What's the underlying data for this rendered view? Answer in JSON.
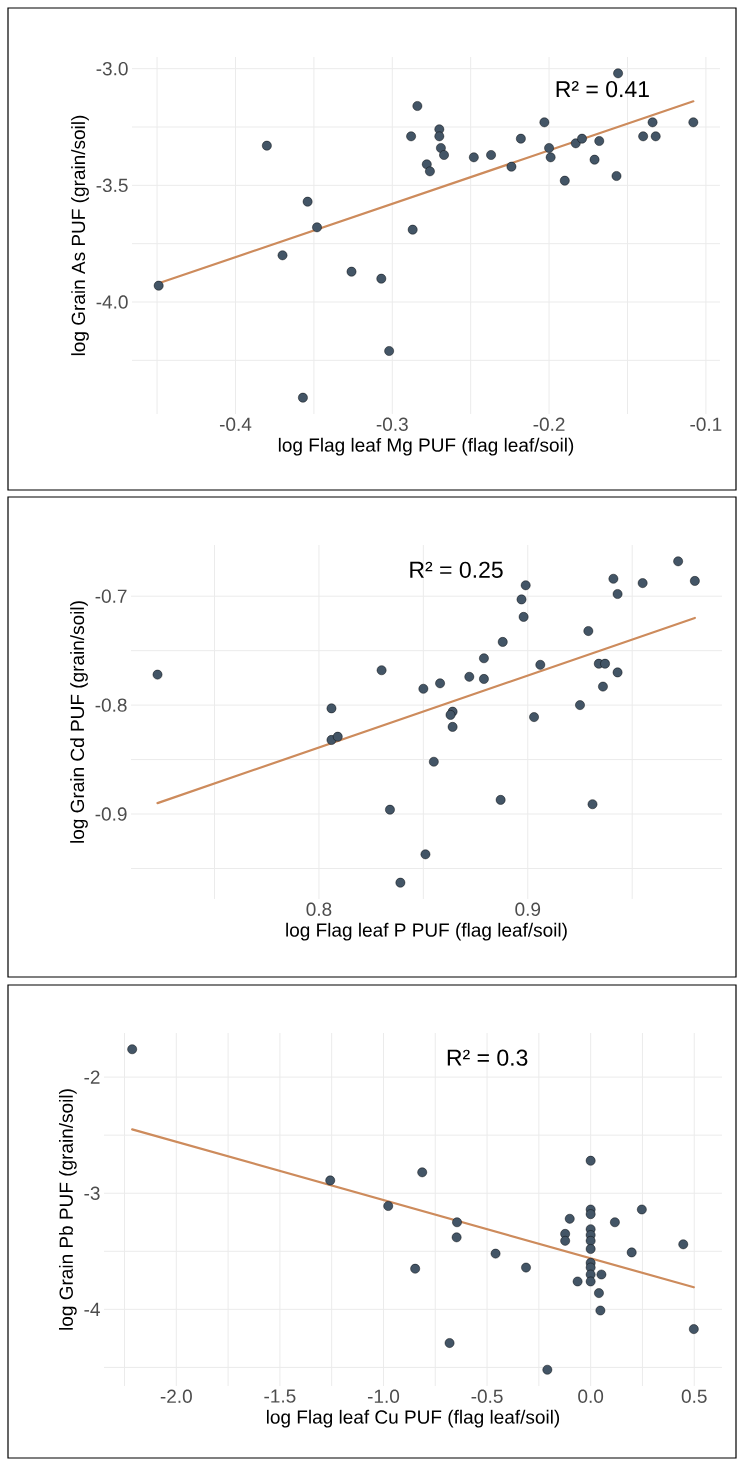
{
  "chart_data": [
    {
      "type": "scatter",
      "xlabel": "log Flag leaf Mg PUF (flag leaf/soil)",
      "ylabel": "log Grain As PUF (grain/soil)",
      "annotations": [
        "R² = 0.41"
      ],
      "xlim": [
        -0.466,
        -0.091
      ],
      "ylim": [
        -4.48,
        -2.95
      ],
      "xticks": [
        {
          "value": -0.45,
          "label": null
        },
        -0.4,
        {
          "value": -0.35,
          "label": null
        },
        -0.3,
        {
          "value": -0.25,
          "label": null
        },
        -0.2,
        {
          "value": -0.15,
          "label": null
        },
        -0.1
      ],
      "yticks": [
        {
          "value": -3.0,
          "label": "-3.0"
        },
        {
          "value": -3.25,
          "label": null
        },
        {
          "value": -3.5,
          "label": "-3.5"
        },
        {
          "value": -3.75,
          "label": null
        },
        {
          "value": -4.0,
          "label": "-4.0"
        },
        {
          "value": -4.25,
          "label": null
        }
      ],
      "grid": true,
      "series": [
        {
          "marker": "circle",
          "color": "#435566",
          "x": [
            -0.449,
            -0.38,
            -0.354,
            -0.348,
            -0.37,
            -0.357,
            -0.326,
            -0.307,
            -0.302,
            -0.284,
            -0.288,
            -0.287,
            -0.278,
            -0.276,
            -0.27,
            -0.27,
            -0.269,
            -0.267,
            -0.248,
            -0.237,
            -0.224,
            -0.218,
            -0.203,
            -0.2,
            -0.199,
            -0.19,
            -0.183,
            -0.179,
            -0.171,
            -0.168,
            -0.157,
            -0.156,
            -0.14,
            -0.134,
            -0.132,
            -0.108
          ],
          "values": [
            -3.93,
            -3.33,
            -3.57,
            -3.68,
            -3.8,
            -4.41,
            -3.87,
            -3.9,
            -4.21,
            -3.16,
            -3.29,
            -3.69,
            -3.41,
            -3.44,
            -3.26,
            -3.29,
            -3.34,
            -3.37,
            -3.38,
            -3.37,
            -3.42,
            -3.3,
            -3.23,
            -3.34,
            -3.38,
            -3.48,
            -3.32,
            -3.3,
            -3.39,
            -3.31,
            -3.46,
            -3.02,
            -3.29,
            -3.23,
            -3.29,
            -3.23
          ]
        },
        {
          "type": "line",
          "marker": "none",
          "color": "#cd8b5c",
          "x": [
            -0.449,
            -0.108
          ],
          "values": [
            -3.92,
            -3.14
          ]
        }
      ]
    },
    {
      "type": "scatter",
      "xlabel": "log Flag leaf P PUF (flag leaf/soil)",
      "ylabel": "log Grain Cd PUF (grain/soil)",
      "annotations": [
        "R² = 0.25"
      ],
      "xlim": [
        0.71,
        0.993
      ],
      "ylim": [
        -0.978,
        -0.653
      ],
      "xticks": [
        {
          "value": 0.75,
          "label": null
        },
        0.8,
        {
          "value": 0.85,
          "label": null
        },
        0.9,
        {
          "value": 0.95,
          "label": null
        }
      ],
      "yticks": [
        -0.7,
        {
          "value": -0.75,
          "label": null
        },
        -0.8,
        {
          "value": -0.85,
          "label": null
        },
        -0.9,
        {
          "value": -0.95,
          "label": null
        }
      ],
      "grid": true,
      "series": [
        {
          "marker": "circle",
          "color": "#435566",
          "x": [
            0.7227,
            0.806,
            0.806,
            0.809,
            0.83,
            0.834,
            0.839,
            0.85,
            0.858,
            0.851,
            0.855,
            0.864,
            0.863,
            0.864,
            0.872,
            0.879,
            0.879,
            0.887,
            0.888,
            0.897,
            0.898,
            0.899,
            0.903,
            0.906,
            0.925,
            0.929,
            0.931,
            0.934,
            0.937,
            0.936,
            0.941,
            0.943,
            0.943,
            0.955,
            0.972,
            0.98
          ],
          "values": [
            -0.772,
            -0.803,
            -0.832,
            -0.829,
            -0.768,
            -0.896,
            -0.963,
            -0.785,
            -0.78,
            -0.937,
            -0.852,
            -0.806,
            -0.809,
            -0.82,
            -0.774,
            -0.776,
            -0.757,
            -0.887,
            -0.742,
            -0.703,
            -0.719,
            -0.69,
            -0.811,
            -0.763,
            -0.8,
            -0.732,
            -0.891,
            -0.762,
            -0.762,
            -0.783,
            -0.684,
            -0.698,
            -0.77,
            -0.688,
            -0.668,
            -0.686
          ]
        },
        {
          "type": "line",
          "marker": "none",
          "color": "#cd8b5c",
          "x": [
            0.7227,
            0.98
          ],
          "values": [
            -0.89,
            -0.72
          ]
        }
      ]
    },
    {
      "type": "scatter",
      "xlabel": "log Flag leaf Cu PUF (flag leaf/soil)",
      "ylabel": "log Grain Pb PUF (grain/soil)",
      "annotations": [
        "R² = 0.3"
      ],
      "xlim": [
        -2.349,
        0.634
      ],
      "ylim": [
        -4.66,
        -1.62
      ],
      "xticks": [
        {
          "value": -2.25,
          "label": null
        },
        {
          "value": -2.0,
          "label": "-2.0"
        },
        {
          "value": -1.75,
          "label": null
        },
        {
          "value": -1.5,
          "label": "-1.5"
        },
        {
          "value": -1.25,
          "label": null
        },
        {
          "value": -1.0,
          "label": "-1.0"
        },
        {
          "value": -0.75,
          "label": null
        },
        {
          "value": -0.5,
          "label": "-0.5"
        },
        {
          "value": -0.25,
          "label": null
        },
        {
          "value": 0.0,
          "label": "0.0"
        },
        {
          "value": 0.25,
          "label": null
        },
        0.5
      ],
      "yticks": [
        -2,
        {
          "value": -2.5,
          "label": null
        },
        -3,
        {
          "value": -3.5,
          "label": null
        },
        -4,
        {
          "value": -4.5,
          "label": null
        }
      ],
      "grid": true,
      "series": [
        {
          "marker": "circle",
          "color": "#435566",
          "x": [
            -2.213,
            -1.257,
            -0.977,
            -0.813,
            -0.847,
            -0.681,
            -0.645,
            -0.647,
            -0.459,
            -0.312,
            -0.209,
            -0.101,
            -0.123,
            -0.123,
            -0.063,
            0,
            0,
            0,
            0,
            0,
            0,
            0,
            0,
            0,
            0,
            0,
            0.052,
            0.04,
            0.047,
            0.117,
            0.198,
            0.247,
            0.447,
            0.498
          ],
          "values": [
            -1.76,
            -2.89,
            -3.11,
            -2.82,
            -3.65,
            -4.29,
            -3.25,
            -3.38,
            -3.52,
            -3.64,
            -4.52,
            -3.22,
            -3.35,
            -3.41,
            -3.76,
            -2.72,
            -3.14,
            -3.18,
            -3.31,
            -3.36,
            -3.41,
            -3.48,
            -3.6,
            -3.64,
            -3.7,
            -3.76,
            -3.7,
            -3.86,
            -4.01,
            -3.25,
            -3.51,
            -3.14,
            -3.44,
            -4.17
          ]
        },
        {
          "type": "line",
          "marker": "none",
          "color": "#cd8b5c",
          "x": [
            -2.213,
            0.498
          ],
          "values": [
            -2.45,
            -3.81
          ]
        }
      ]
    }
  ]
}
